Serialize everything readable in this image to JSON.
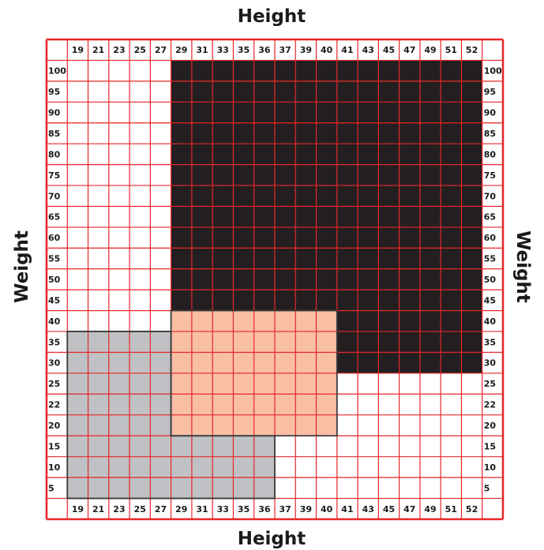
{
  "chart_data": {
    "type": "heatmap",
    "title_top": "Height",
    "title_bottom": "Height",
    "title_left": "Weight",
    "title_right": "Weight",
    "x_ticks": [
      "19",
      "21",
      "23",
      "25",
      "27",
      "29",
      "31",
      "33",
      "35",
      "36",
      "37",
      "39",
      "40",
      "41",
      "43",
      "45",
      "47",
      "49",
      "51",
      "52"
    ],
    "y_ticks": [
      "100",
      "95",
      "90",
      "85",
      "80",
      "75",
      "70",
      "65",
      "60",
      "55",
      "50",
      "45",
      "40",
      "35",
      "30",
      "25",
      "22",
      "20",
      "15",
      "10",
      "5"
    ],
    "zones": [
      {
        "name": "black",
        "color": "#231f20",
        "cells": [
          {
            "x_from": "29",
            "x_to": "40",
            "y_from": "45",
            "y_to": "100"
          },
          {
            "x_from": "41",
            "x_to": "52",
            "y_from": "30",
            "y_to": "100"
          }
        ]
      },
      {
        "name": "salmon",
        "color": "#f9bfa5",
        "cells": [
          {
            "x_from": "29",
            "x_to": "40",
            "y_from": "20",
            "y_to": "40"
          }
        ]
      },
      {
        "name": "gray",
        "color": "#c0c1c4",
        "cells": [
          {
            "x_from": "19",
            "x_to": "27",
            "y_from": "15",
            "y_to": "35"
          },
          {
            "x_from": "19",
            "x_to": "36",
            "y_from": "5",
            "y_to": "15"
          }
        ]
      }
    ],
    "grid_color": "#e8262a",
    "outline_color": "#3a3a3a"
  }
}
